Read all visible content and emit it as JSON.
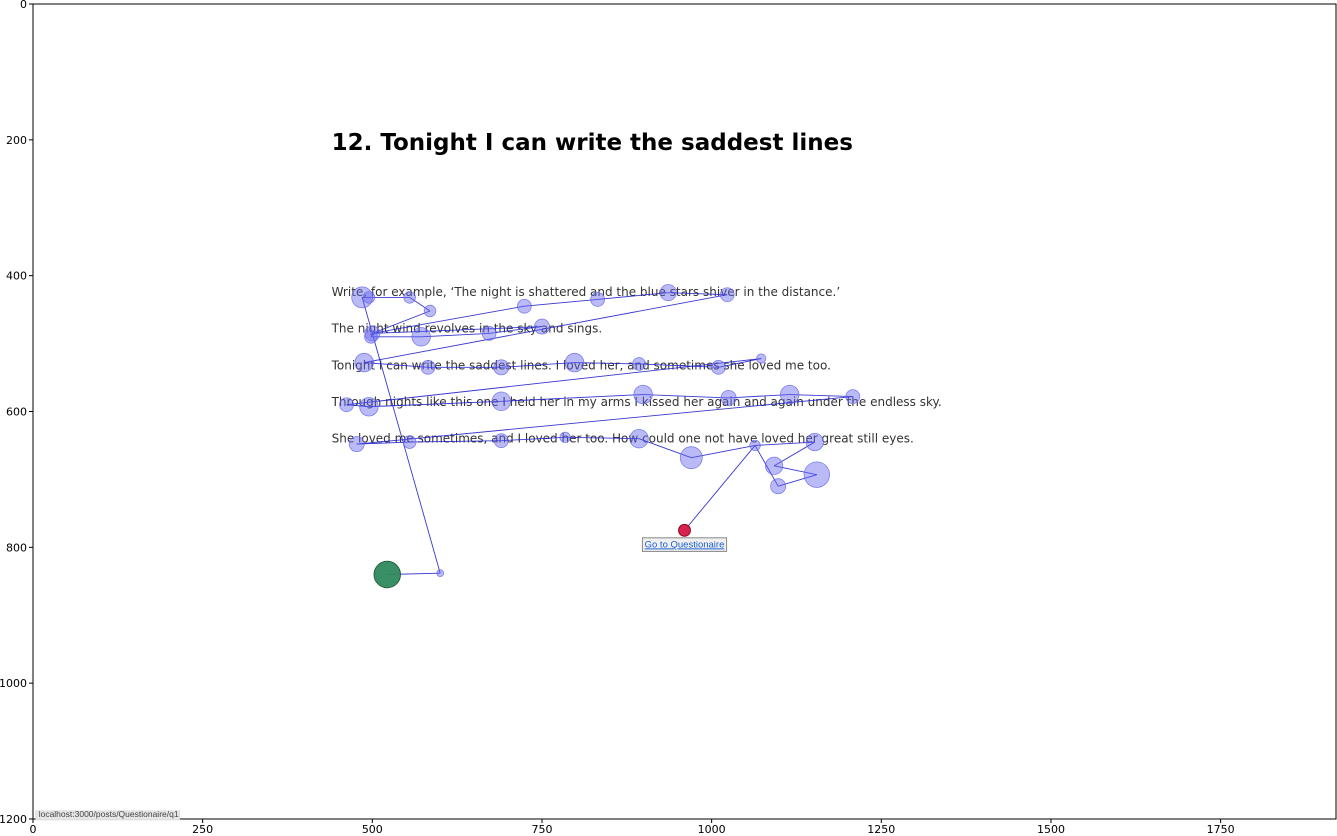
{
  "page": {
    "title": "12. Tonight I can write the saddest lines",
    "lines": [
      "Write, for example, ‘The night is shattered and the blue stars shiver in the distance.’",
      "The night wind revolves in the sky and sings.",
      "Tonight I can write the saddest lines. I loved her, and sometimes she loved me too.",
      "Through nights like this one I held her in my arms I kissed her again and again under the endless sky.",
      "She loved me sometimes, and I loved her too. How could one not have loved her great still eyes."
    ],
    "button_label": "Go to Questionaire",
    "status_url": "localhost:3000/posts/Questionaire/q1"
  },
  "colors": {
    "fixation": "#6666ee",
    "path": "#2222cc",
    "start": "#2e8b57",
    "end": "#dc143c"
  },
  "chart_data": {
    "type": "scatter",
    "title": "",
    "xlabel": "",
    "ylabel": "",
    "xlim": [
      0,
      1920
    ],
    "ylim": [
      1200,
      0
    ],
    "xticks": [
      0,
      250,
      500,
      750,
      1000,
      1250,
      1500,
      1750
    ],
    "yticks": [
      0,
      200,
      400,
      600,
      800,
      1000,
      1200
    ],
    "grid": false,
    "text_positions": {
      "title": [
        440,
        215
      ],
      "lines": [
        [
          440,
          430
        ],
        [
          440,
          484
        ],
        [
          440,
          538
        ],
        [
          440,
          592
        ],
        [
          440,
          646
        ]
      ],
      "button": [
        898,
        786,
        1022,
        806
      ],
      "status": [
        4,
        1188,
        212,
        1200
      ]
    },
    "start_point": {
      "x": 522,
      "y": 840,
      "size": 20
    },
    "end_point": {
      "x": 960,
      "y": 775,
      "size": 9
    },
    "fixations": [
      {
        "x": 522,
        "y": 840,
        "size": 20
      },
      {
        "x": 600,
        "y": 838,
        "size": 6
      },
      {
        "x": 485,
        "y": 432,
        "size": 18
      },
      {
        "x": 495,
        "y": 432,
        "size": 10
      },
      {
        "x": 555,
        "y": 432,
        "size": 10
      },
      {
        "x": 585,
        "y": 452,
        "size": 10
      },
      {
        "x": 500,
        "y": 485,
        "size": 13
      },
      {
        "x": 498,
        "y": 490,
        "size": 11
      },
      {
        "x": 572,
        "y": 490,
        "size": 16
      },
      {
        "x": 672,
        "y": 485,
        "size": 12
      },
      {
        "x": 750,
        "y": 475,
        "size": 13
      },
      {
        "x": 724,
        "y": 445,
        "size": 12
      },
      {
        "x": 832,
        "y": 435,
        "size": 12
      },
      {
        "x": 936,
        "y": 425,
        "size": 14
      },
      {
        "x": 1023,
        "y": 428,
        "size": 12
      },
      {
        "x": 488,
        "y": 528,
        "size": 16
      },
      {
        "x": 582,
        "y": 535,
        "size": 12
      },
      {
        "x": 690,
        "y": 535,
        "size": 13
      },
      {
        "x": 798,
        "y": 528,
        "size": 16
      },
      {
        "x": 893,
        "y": 530,
        "size": 11
      },
      {
        "x": 1010,
        "y": 535,
        "size": 12
      },
      {
        "x": 1073,
        "y": 522,
        "size": 8
      },
      {
        "x": 462,
        "y": 590,
        "size": 12
      },
      {
        "x": 495,
        "y": 593,
        "size": 16
      },
      {
        "x": 690,
        "y": 585,
        "size": 16
      },
      {
        "x": 899,
        "y": 575,
        "size": 16
      },
      {
        "x": 1025,
        "y": 580,
        "size": 13
      },
      {
        "x": 1115,
        "y": 575,
        "size": 16
      },
      {
        "x": 1208,
        "y": 578,
        "size": 12
      },
      {
        "x": 477,
        "y": 648,
        "size": 13
      },
      {
        "x": 555,
        "y": 645,
        "size": 11
      },
      {
        "x": 690,
        "y": 643,
        "size": 12
      },
      {
        "x": 784,
        "y": 638,
        "size": 9
      },
      {
        "x": 893,
        "y": 640,
        "size": 16
      },
      {
        "x": 970,
        "y": 668,
        "size": 19
      },
      {
        "x": 1064,
        "y": 650,
        "size": 9
      },
      {
        "x": 1152,
        "y": 645,
        "size": 15
      },
      {
        "x": 1092,
        "y": 680,
        "size": 15
      },
      {
        "x": 1155,
        "y": 693,
        "size": 22
      },
      {
        "x": 1098,
        "y": 710,
        "size": 13
      },
      {
        "x": 960,
        "y": 775,
        "size": 9
      }
    ],
    "path": [
      [
        522,
        840
      ],
      [
        600,
        838
      ],
      [
        485,
        432
      ],
      [
        495,
        432
      ],
      [
        555,
        432
      ],
      [
        585,
        452
      ],
      [
        500,
        485
      ],
      [
        498,
        490
      ],
      [
        572,
        490
      ],
      [
        672,
        485
      ],
      [
        750,
        475
      ],
      [
        500,
        485
      ],
      [
        724,
        445
      ],
      [
        832,
        435
      ],
      [
        936,
        425
      ],
      [
        1023,
        428
      ],
      [
        488,
        528
      ],
      [
        582,
        535
      ],
      [
        690,
        535
      ],
      [
        798,
        528
      ],
      [
        893,
        530
      ],
      [
        1010,
        535
      ],
      [
        1073,
        522
      ],
      [
        462,
        590
      ],
      [
        495,
        593
      ],
      [
        690,
        585
      ],
      [
        899,
        575
      ],
      [
        1025,
        580
      ],
      [
        1115,
        575
      ],
      [
        1208,
        578
      ],
      [
        477,
        648
      ],
      [
        555,
        645
      ],
      [
        690,
        643
      ],
      [
        784,
        638
      ],
      [
        893,
        640
      ],
      [
        970,
        668
      ],
      [
        1064,
        650
      ],
      [
        1152,
        645
      ],
      [
        1092,
        680
      ],
      [
        1155,
        693
      ],
      [
        1098,
        710
      ],
      [
        1064,
        650
      ],
      [
        960,
        775
      ]
    ]
  }
}
